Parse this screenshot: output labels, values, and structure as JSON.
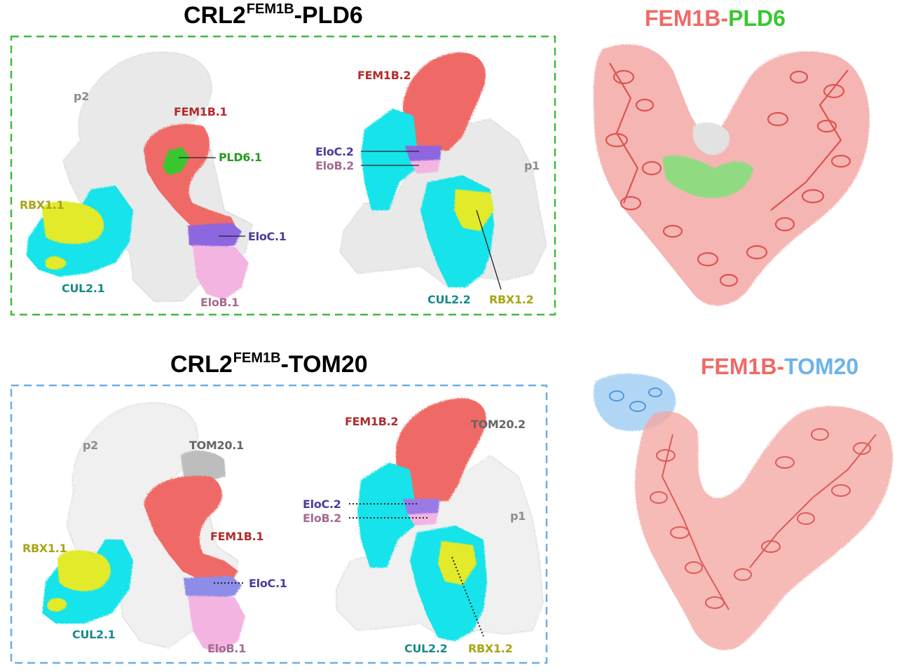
{
  "colors": {
    "fem1b": "#ef6a66",
    "fem1b_dark": "#b22c2c",
    "pld6": "#39c72f",
    "tom20": "#6db3ea",
    "cul2": "#13e3ea",
    "cul2_label": "#1a8a8a",
    "rbx1": "#e2ea2a",
    "rbx1_label": "#a8a516",
    "eloc": "#8d66e0",
    "eloc_label": "#4f3c9a",
    "elob": "#f3b4e2",
    "elob_label": "#a56c8f",
    "grey_density": "#e9e9e9",
    "tom20_density": "#bdbdbd",
    "green_box": "#3dbb3d",
    "blue_box": "#6aaee8",
    "p_label": "#8c8c8c"
  },
  "panel_top": {
    "title_main": "CRL2",
    "title_sup": "FEM1B",
    "title_suffix": "-PLD6",
    "labels": {
      "p2": "p2",
      "fem1b_1": "FEM1B.1",
      "pld6_1": "PLD6.1",
      "rbx1_1": "RBX1.1",
      "eloc_1": "EloC.1",
      "cul2_1": "CUL2.1",
      "elob_1": "EloB.1",
      "fem1b_2": "FEM1B.2",
      "eloc_2": "EloC.2",
      "elob_2": "EloB.2",
      "p1": "p1",
      "cul2_2": "CUL2.2",
      "rbx1_2": "RBX1.2"
    }
  },
  "panel_bottom": {
    "title_main": "CRL2",
    "title_sup": "FEM1B",
    "title_suffix": "-TOM20",
    "labels": {
      "p2": "p2",
      "tom20_1": "TOM20.1",
      "fem1b_1": "FEM1B.1",
      "rbx1_1": "RBX1.1",
      "eloc_1": "EloC.1",
      "cul2_1": "CUL2.1",
      "elob_1": "EloB.1",
      "fem1b_2": "FEM1B.2",
      "tom20_2": "TOM20.2",
      "eloc_2": "EloC.2",
      "elob_2": "EloB.2",
      "p1": "p1",
      "cul2_2": "CUL2.2",
      "rbx1_2": "RBX1.2"
    }
  },
  "right_top": {
    "part1": "FEM1B-",
    "part2": "PLD6"
  },
  "right_bottom": {
    "part1": "FEM1B-",
    "part2": "TOM20"
  }
}
